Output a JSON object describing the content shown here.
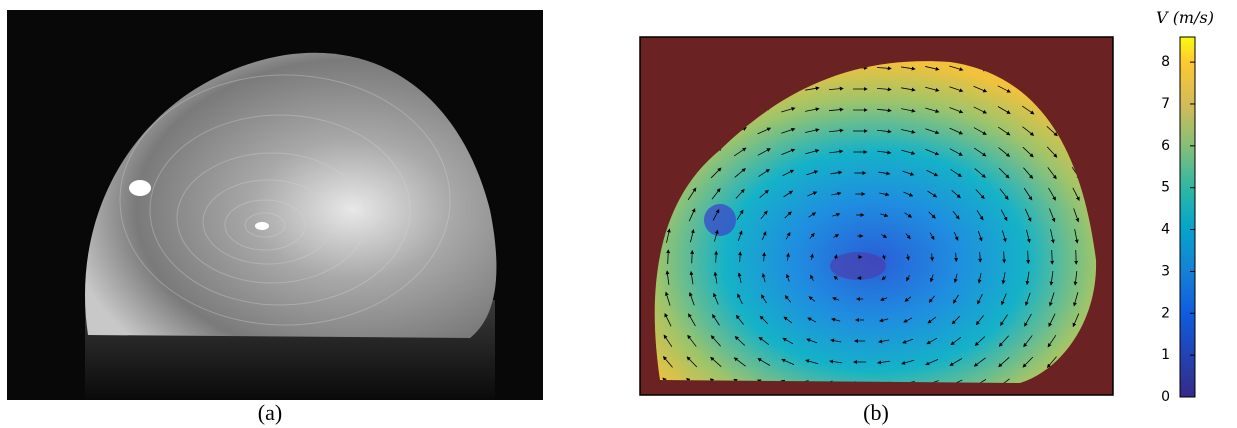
{
  "panel_a": {
    "label": "(a)"
  },
  "panel_b": {
    "label": "(b)",
    "colorbar": {
      "label": "V (m/s)",
      "lim": [
        0,
        8.6
      ],
      "ticks": [
        0,
        1,
        2,
        3,
        4,
        5,
        6,
        7,
        8
      ]
    }
  }
}
